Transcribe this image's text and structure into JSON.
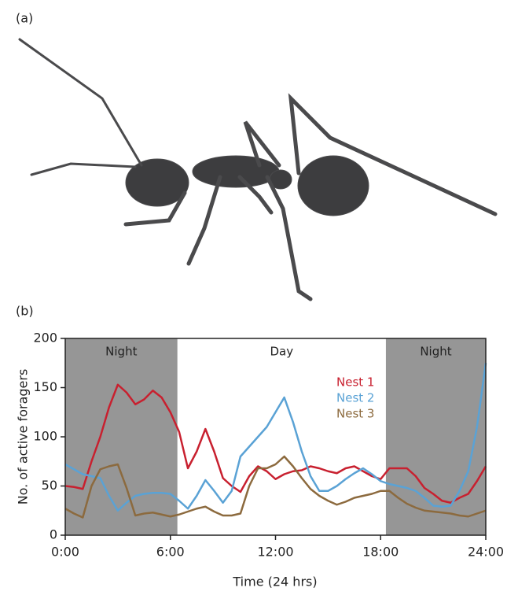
{
  "panel_labels": [
    "(a)",
    "(b)"
  ],
  "chart_data": {
    "type": "line",
    "xlabel": "Time (24 hrs)",
    "ylabel": "No. of active foragers",
    "x": [
      0,
      0.5,
      1,
      1.5,
      2,
      2.5,
      3,
      3.5,
      4,
      4.5,
      5,
      5.5,
      6,
      6.5,
      7,
      7.5,
      8,
      8.5,
      9,
      9.5,
      10,
      10.5,
      11,
      11.5,
      12,
      12.5,
      13,
      13.5,
      14,
      14.5,
      15,
      15.5,
      16,
      16.5,
      17,
      17.5,
      18,
      18.5,
      19,
      19.5,
      20,
      20.5,
      21,
      21.5,
      22,
      22.5,
      23,
      23.5,
      24
    ],
    "series": [
      {
        "name": "Nest 1",
        "color": "#c8202f",
        "values": [
          50,
          49,
          47,
          75,
          100,
          130,
          153,
          145,
          133,
          138,
          147,
          140,
          125,
          105,
          68,
          85,
          108,
          85,
          58,
          50,
          44,
          60,
          70,
          65,
          57,
          62,
          65,
          66,
          70,
          68,
          65,
          63,
          68,
          70,
          65,
          60,
          57,
          68,
          68,
          68,
          60,
          48,
          42,
          35,
          33,
          38,
          42,
          55,
          70
        ]
      },
      {
        "name": "Nest 2",
        "color": "#5aa2d5",
        "values": [
          72,
          67,
          62,
          60,
          58,
          40,
          25,
          33,
          40,
          42,
          43,
          43,
          42,
          35,
          27,
          40,
          56,
          45,
          33,
          45,
          80,
          90,
          100,
          110,
          125,
          140,
          115,
          85,
          60,
          45,
          45,
          50,
          57,
          63,
          68,
          62,
          55,
          52,
          50,
          48,
          45,
          38,
          30,
          29,
          30,
          45,
          65,
          110,
          175
        ]
      },
      {
        "name": "Nest 3",
        "color": "#8c6a3e",
        "values": [
          27,
          22,
          18,
          50,
          67,
          70,
          72,
          48,
          20,
          22,
          23,
          21,
          19,
          21,
          24,
          27,
          29,
          24,
          20,
          20,
          22,
          50,
          68,
          68,
          72,
          80,
          70,
          58,
          47,
          40,
          35,
          31,
          34,
          38,
          40,
          42,
          45,
          45,
          38,
          32,
          28,
          25,
          24,
          23,
          22,
          20,
          19,
          22,
          25
        ]
      }
    ],
    "periods": [
      {
        "label": "Night",
        "start": 0,
        "end": 6.4,
        "shaded": true
      },
      {
        "label": "Day",
        "start": 6.4,
        "end": 18.3,
        "shaded": false
      },
      {
        "label": "Night",
        "start": 18.3,
        "end": 24,
        "shaded": true
      }
    ],
    "shade_color": "#969696",
    "xlim": [
      0,
      24
    ],
    "ylim": [
      0,
      200
    ],
    "xticks": [
      {
        "value": 0,
        "label": "0:00"
      },
      {
        "value": 6,
        "label": "6:00"
      },
      {
        "value": 12,
        "label": "12:00"
      },
      {
        "value": 18,
        "label": "18:00"
      },
      {
        "value": 24,
        "label": "24:00"
      }
    ],
    "yticks": [
      0,
      50,
      100,
      150,
      200
    ]
  }
}
